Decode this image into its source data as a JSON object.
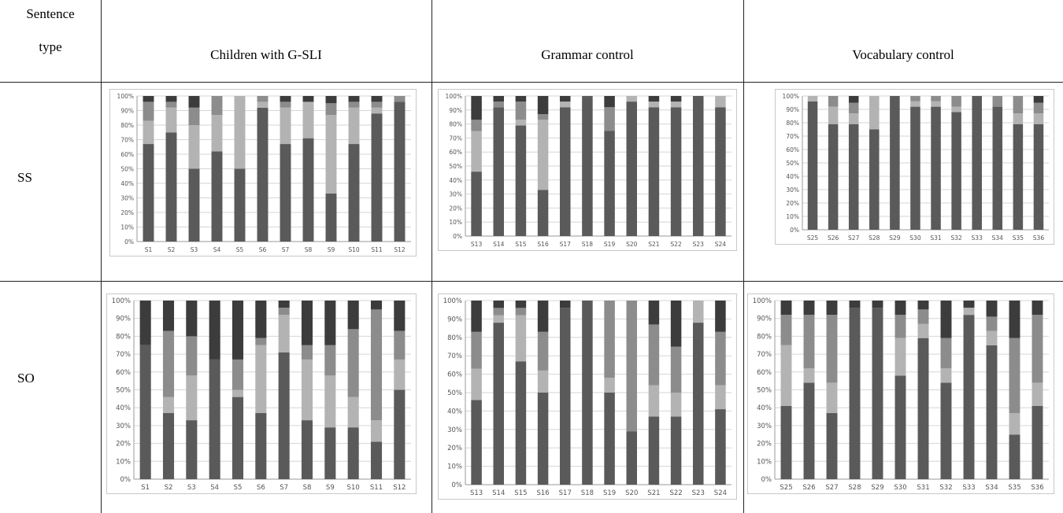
{
  "table": {
    "header_col1_line1": "Sentence",
    "header_col1_line2": "type",
    "columns": [
      "Children with G-SLI",
      "Grammar control",
      "Vocabulary control"
    ],
    "rows": [
      "SS",
      "SO"
    ]
  },
  "colors": {
    "seg1": "#5a5a5a",
    "seg2": "#b3b3b3",
    "seg3": "#8c8c8c",
    "seg4": "#3c3c3c",
    "grid": "#d6d6d6",
    "axis": "#9a9a9a"
  },
  "chart_data": [
    {
      "type": "bar",
      "stacked": true,
      "percent": true,
      "row": "SS",
      "group": "Children with G-SLI",
      "categories": [
        "S1",
        "S2",
        "S3",
        "S4",
        "S5",
        "S6",
        "S7",
        "S8",
        "S9",
        "S10",
        "S11",
        "S12"
      ],
      "yticks": [
        "0%",
        "10%",
        "20%",
        "30%",
        "40%",
        "50%",
        "60%",
        "70%",
        "80%",
        "90%",
        "100%"
      ],
      "ylim": [
        0,
        100
      ],
      "series": [
        {
          "values": [
            67,
            75,
            50,
            62,
            50,
            92,
            67,
            71,
            33,
            67,
            88,
            96
          ]
        },
        {
          "values": [
            16,
            17,
            30,
            25,
            50,
            4,
            25,
            25,
            54,
            25,
            4,
            0
          ]
        },
        {
          "values": [
            13,
            4,
            12,
            13,
            0,
            4,
            4,
            0,
            8,
            4,
            4,
            4
          ]
        },
        {
          "values": [
            4,
            4,
            8,
            0,
            0,
            0,
            4,
            4,
            5,
            4,
            4,
            0
          ]
        }
      ]
    },
    {
      "type": "bar",
      "stacked": true,
      "percent": true,
      "row": "SS",
      "group": "Grammar control",
      "categories": [
        "S13",
        "S14",
        "S15",
        "S16",
        "S17",
        "S18",
        "S19",
        "S20",
        "S21",
        "S22",
        "S23",
        "S24"
      ],
      "yticks": [
        "0%",
        "10%",
        "20%",
        "30%",
        "40%",
        "50%",
        "60%",
        "70%",
        "80%",
        "90%",
        "100%"
      ],
      "ylim": [
        0,
        100
      ],
      "series": [
        {
          "values": [
            46,
            92,
            79,
            33,
            92,
            100,
            75,
            96,
            92,
            92,
            100,
            92
          ]
        },
        {
          "values": [
            29,
            0,
            4,
            50,
            4,
            0,
            0,
            4,
            4,
            4,
            0,
            8
          ]
        },
        {
          "values": [
            8,
            4,
            13,
            4,
            0,
            0,
            17,
            0,
            0,
            0,
            0,
            0
          ]
        },
        {
          "values": [
            17,
            4,
            4,
            13,
            4,
            0,
            8,
            0,
            4,
            4,
            0,
            0
          ]
        }
      ]
    },
    {
      "type": "bar",
      "stacked": true,
      "percent": true,
      "row": "SS",
      "group": "Vocabulary control",
      "categories": [
        "S25",
        "S26",
        "S27",
        "S28",
        "S29",
        "S30",
        "S31",
        "S32",
        "S33",
        "S34",
        "S35",
        "S36"
      ],
      "yticks": [
        "0%",
        "10%",
        "20%",
        "30%",
        "40%",
        "50%",
        "60%",
        "70%",
        "80%",
        "90%",
        "100%"
      ],
      "ylim": [
        0,
        100
      ],
      "series": [
        {
          "values": [
            96,
            79,
            79,
            75,
            100,
            92,
            92,
            88,
            100,
            92,
            79,
            79
          ]
        },
        {
          "values": [
            4,
            13,
            8,
            25,
            0,
            4,
            4,
            4,
            0,
            0,
            8,
            8
          ]
        },
        {
          "values": [
            0,
            8,
            8,
            0,
            0,
            4,
            4,
            8,
            0,
            8,
            13,
            8
          ]
        },
        {
          "values": [
            0,
            0,
            5,
            0,
            0,
            0,
            0,
            0,
            0,
            0,
            0,
            5
          ]
        }
      ]
    },
    {
      "type": "bar",
      "stacked": true,
      "percent": true,
      "row": "SO",
      "group": "Children with G-SLI",
      "categories": [
        "S1",
        "S2",
        "S3",
        "S4",
        "S5",
        "S6",
        "S7",
        "S8",
        "S9",
        "S10",
        "S11",
        "S12"
      ],
      "yticks": [
        "0%",
        "10%",
        "20%",
        "30%",
        "40%",
        "50%",
        "60%",
        "70%",
        "80%",
        "90%",
        "100%"
      ],
      "ylim": [
        0,
        100
      ],
      "series": [
        {
          "values": [
            75,
            37,
            33,
            67,
            46,
            37,
            71,
            33,
            29,
            29,
            21,
            50
          ]
        },
        {
          "values": [
            0,
            9,
            25,
            0,
            4,
            38,
            21,
            34,
            29,
            17,
            12,
            17
          ]
        },
        {
          "values": [
            0,
            37,
            22,
            0,
            17,
            4,
            4,
            8,
            17,
            38,
            62,
            16
          ]
        },
        {
          "values": [
            25,
            17,
            20,
            33,
            33,
            21,
            4,
            25,
            25,
            16,
            5,
            17
          ]
        }
      ]
    },
    {
      "type": "bar",
      "stacked": true,
      "percent": true,
      "row": "SO",
      "group": "Grammar control",
      "categories": [
        "S13",
        "S14",
        "S15",
        "S16",
        "S17",
        "S18",
        "S19",
        "S20",
        "S21",
        "S22",
        "S23",
        "S24"
      ],
      "yticks": [
        "0%",
        "10%",
        "20%",
        "30%",
        "40%",
        "50%",
        "60%",
        "70%",
        "80%",
        "90%",
        "100%"
      ],
      "ylim": [
        0,
        100
      ],
      "series": [
        {
          "values": [
            46,
            88,
            67,
            50,
            96,
            100,
            50,
            29,
            37,
            37,
            88,
            41
          ]
        },
        {
          "values": [
            17,
            4,
            25,
            12,
            0,
            0,
            8,
            0,
            17,
            13,
            12,
            13
          ]
        },
        {
          "values": [
            20,
            4,
            4,
            21,
            0,
            0,
            42,
            71,
            33,
            25,
            0,
            29
          ]
        },
        {
          "values": [
            17,
            4,
            4,
            17,
            4,
            0,
            0,
            0,
            13,
            25,
            0,
            17
          ]
        }
      ]
    },
    {
      "type": "bar",
      "stacked": true,
      "percent": true,
      "row": "SO",
      "group": "Vocabulary control",
      "categories": [
        "S25",
        "S26",
        "S27",
        "S28",
        "S29",
        "S30",
        "S31",
        "S32",
        "S33",
        "S34",
        "S35",
        "S36"
      ],
      "yticks": [
        "0%",
        "10%",
        "20%",
        "30%",
        "40%",
        "50%",
        "60%",
        "70%",
        "80%",
        "90%",
        "100%"
      ],
      "ylim": [
        0,
        100
      ],
      "series": [
        {
          "values": [
            41,
            54,
            37,
            96,
            96,
            58,
            79,
            54,
            92,
            75,
            25,
            41
          ]
        },
        {
          "values": [
            34,
            8,
            17,
            0,
            0,
            21,
            8,
            8,
            4,
            8,
            12,
            13
          ]
        },
        {
          "values": [
            17,
            30,
            38,
            0,
            0,
            13,
            8,
            17,
            0,
            8,
            42,
            38
          ]
        },
        {
          "values": [
            8,
            8,
            8,
            4,
            4,
            8,
            5,
            21,
            4,
            9,
            21,
            8
          ]
        }
      ]
    }
  ]
}
